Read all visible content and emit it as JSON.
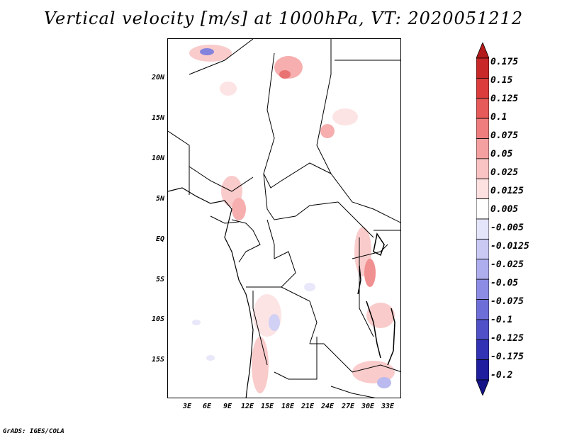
{
  "title": "Vertical velocity [m/s] at 1000hPa, VT: 2020051212",
  "credit": "GrADS: IGES/COLA",
  "axes": {
    "lat_labels": [
      "20N",
      "15N",
      "10N",
      "5N",
      "EQ",
      "5S",
      "10S",
      "15S"
    ],
    "lon_labels": [
      "3E",
      "6E",
      "9E",
      "12E",
      "15E",
      "18E",
      "21E",
      "24E",
      "27E",
      "30E",
      "33E"
    ]
  },
  "colorbar": {
    "levels": [
      "0.175",
      "0.15",
      "0.125",
      "0.1",
      "0.075",
      "0.05",
      "0.025",
      "0.0125",
      "0.005",
      "-0.005",
      "-0.0125",
      "-0.025",
      "-0.05",
      "-0.075",
      "-0.1",
      "-0.125",
      "-0.175",
      "-0.2"
    ],
    "colors": [
      "#b31a1a",
      "#c82828",
      "#dc3c3c",
      "#e65a5a",
      "#ef7d7d",
      "#f5a0a0",
      "#f9c3c3",
      "#fde0e0",
      "#ffffff",
      "#e4e4fa",
      "#c9c9f4",
      "#aeaeee",
      "#8c8ce4",
      "#6e6ed8",
      "#5050c8",
      "#3232b4",
      "#1e1e9e",
      "#141488"
    ]
  }
}
